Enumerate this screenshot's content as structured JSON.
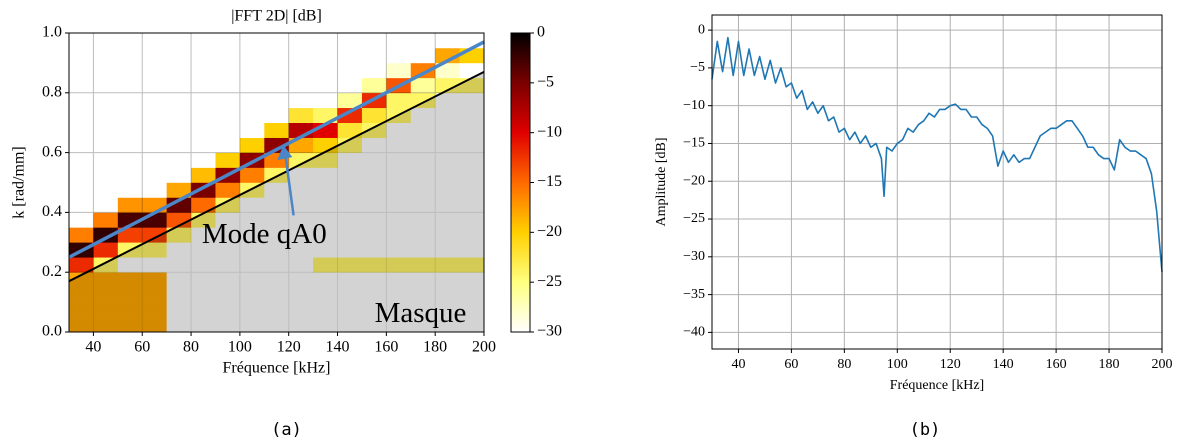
{
  "chart_data": [
    {
      "type": "heatmap",
      "title": "|FFT 2D| [dB]",
      "x_label": "Fréquence [kHz]",
      "y_label": "k [rad/mm]",
      "caption": "(a)",
      "xlim": [
        30,
        200
      ],
      "ylim": [
        0,
        1
      ],
      "xticks": [
        40,
        60,
        80,
        100,
        120,
        140,
        160,
        180,
        200
      ],
      "yticks": [
        {
          "value": 0,
          "label": "0.0"
        },
        0.2,
        0.4,
        0.6,
        0.8,
        {
          "value": 1,
          "label": "1.0"
        }
      ],
      "grid": true,
      "x_bins": [
        30,
        40,
        50,
        60,
        70,
        80,
        90,
        100,
        110,
        120,
        130,
        140,
        150,
        160,
        170,
        180,
        190,
        200
      ],
      "y_bins": [
        0,
        0.05,
        0.1,
        0.15,
        0.2,
        0.25,
        0.3,
        0.35,
        0.4,
        0.45,
        0.5,
        0.55,
        0.6,
        0.65,
        0.7,
        0.75,
        0.8,
        0.85,
        0.9,
        0.95,
        1
      ],
      "z": [
        [
          -18,
          -18,
          -18,
          -18,
          -30,
          -30,
          -30,
          -30,
          -30,
          -30,
          -30,
          -30,
          -30,
          -30,
          -30,
          -30,
          -30
        ],
        [
          -18,
          -18,
          -18,
          -18,
          -30,
          -30,
          -30,
          -30,
          -30,
          -30,
          -30,
          -30,
          -30,
          -30,
          -30,
          -30,
          -30
        ],
        [
          -18,
          -18,
          -18,
          -18,
          -30,
          -30,
          -30,
          -30,
          -30,
          -30,
          -30,
          -30,
          -30,
          -30,
          -30,
          -30,
          -30
        ],
        [
          -18,
          -18,
          -18,
          -18,
          -30,
          -30,
          -30,
          -30,
          -30,
          -30,
          -30,
          -30,
          -30,
          -30,
          -30,
          -30,
          -30
        ],
        [
          -12,
          -24,
          -30,
          -30,
          -30,
          -30,
          -30,
          -30,
          -30,
          -30,
          -24,
          -24,
          -24,
          -24,
          -24,
          -24,
          -24
        ],
        [
          -2,
          -12,
          -24,
          -24,
          -30,
          -30,
          -30,
          -30,
          -30,
          -30,
          -30,
          -30,
          -30,
          -30,
          -30,
          -30,
          -30
        ],
        [
          -16,
          -2,
          -13,
          -13,
          -24,
          -30,
          -30,
          -30,
          -30,
          -30,
          -30,
          -30,
          -30,
          -30,
          -30,
          -30,
          -30
        ],
        [
          -30,
          -16,
          -3,
          -3,
          -14,
          -24,
          -30,
          -30,
          -30,
          -30,
          -30,
          -30,
          -30,
          -30,
          -30,
          -30,
          -30
        ],
        [
          -30,
          -30,
          -17,
          -17,
          -4,
          -15,
          -24,
          -30,
          -30,
          -30,
          -30,
          -30,
          -30,
          -30,
          -30,
          -30,
          -30
        ],
        [
          -30,
          -30,
          -30,
          -30,
          -18,
          -5,
          -16,
          -24,
          -30,
          -30,
          -30,
          -30,
          -30,
          -30,
          -30,
          -30,
          -30
        ],
        [
          -30,
          -30,
          -30,
          -30,
          -30,
          -19,
          -6,
          -16,
          -24,
          -30,
          -30,
          -30,
          -30,
          -30,
          -30,
          -30,
          -30
        ],
        [
          -30,
          -30,
          -30,
          -30,
          -30,
          -30,
          -20,
          -6,
          -16,
          -24,
          -24,
          -30,
          -30,
          -30,
          -30,
          -30,
          -30
        ],
        [
          -30,
          -30,
          -30,
          -30,
          -30,
          -30,
          -30,
          -20,
          -6,
          -18,
          -20,
          -24,
          -30,
          -30,
          -30,
          -30,
          -30
        ],
        [
          -30,
          -30,
          -30,
          -30,
          -30,
          -30,
          -30,
          -30,
          -20,
          -8,
          -10,
          -22,
          -24,
          -30,
          -30,
          -30,
          -30
        ],
        [
          -30,
          -30,
          -30,
          -30,
          -30,
          -30,
          -30,
          -30,
          -30,
          -22,
          -24,
          -12,
          -22,
          -24,
          -30,
          -30,
          -30
        ],
        [
          -30,
          -30,
          -30,
          -30,
          -30,
          -30,
          -30,
          -30,
          -30,
          -30,
          -30,
          -26,
          -12,
          -24,
          -24,
          -30,
          -30
        ],
        [
          -30,
          -30,
          -30,
          -30,
          -30,
          -30,
          -30,
          -30,
          -30,
          -30,
          -30,
          -30,
          -26,
          -14,
          -26,
          -24,
          -24
        ],
        [
          -30,
          -30,
          -30,
          -30,
          -30,
          -30,
          -30,
          -30,
          -30,
          -30,
          -30,
          -30,
          -30,
          -28,
          -16,
          -28,
          -30
        ],
        [
          -30,
          -30,
          -30,
          -30,
          -30,
          -30,
          -30,
          -30,
          -30,
          -30,
          -30,
          -30,
          -30,
          -30,
          -30,
          -18,
          -20
        ],
        [
          -30,
          -30,
          -30,
          -30,
          -30,
          -30,
          -30,
          -30,
          -30,
          -30,
          -30,
          -30,
          -30,
          -30,
          -30,
          -30,
          -30
        ]
      ],
      "zlim": [
        -30,
        0
      ],
      "zticks": [
        0,
        {
          "value": -5,
          "label": "−5"
        },
        {
          "value": -10,
          "label": "−10"
        },
        {
          "value": -15,
          "label": "−15"
        },
        {
          "value": -20,
          "label": "−20"
        },
        {
          "value": -25,
          "label": "−25"
        },
        {
          "value": -30,
          "label": "−30"
        }
      ],
      "colormap": [
        "#ffffff",
        "#ffff80",
        "#ffd000",
        "#ff6a00",
        "#e00000",
        "#7a0000",
        "#000000"
      ],
      "mask": {
        "x": [
          30,
          30,
          200,
          200
        ],
        "y": [
          0,
          0.17,
          0.87,
          0
        ],
        "color": "#d3d3d3",
        "label": "Masque"
      },
      "lines": [
        {
          "x": [
            30,
            200
          ],
          "y": [
            0.17,
            0.87
          ],
          "color": "#000000"
        },
        {
          "x": [
            30,
            200
          ],
          "y": [
            0.25,
            0.97
          ],
          "color": "#4a86c8"
        }
      ],
      "annotation": "Mode qA0"
    },
    {
      "type": "line",
      "x_label": "Fréquence [kHz]",
      "y_label": "Amplitude [dB]",
      "caption": "(b)",
      "xlim": [
        30,
        200
      ],
      "ylim": [
        -42.2,
        2
      ],
      "xticks": [
        40,
        60,
        80,
        100,
        120,
        140,
        160,
        180,
        200
      ],
      "yticks": [
        0,
        {
          "value": -5,
          "label": "−5"
        },
        {
          "value": -10,
          "label": "−10"
        },
        {
          "value": -15,
          "label": "−15"
        },
        {
          "value": -20,
          "label": "−20"
        },
        {
          "value": -25,
          "label": "−25"
        },
        {
          "value": -30,
          "label": "−30"
        },
        {
          "value": -35,
          "label": "−35"
        },
        {
          "value": -40,
          "label": "−40"
        }
      ],
      "grid": true,
      "series": [
        {
          "color": "#1f77b4",
          "x": [
            30,
            32,
            34,
            36,
            38,
            40,
            42,
            44,
            46,
            48,
            50,
            52,
            54,
            56,
            58,
            60,
            62,
            64,
            66,
            68,
            70,
            72,
            74,
            76,
            78,
            80,
            82,
            84,
            86,
            88,
            90,
            92,
            94,
            95,
            96,
            98,
            100,
            102,
            104,
            106,
            108,
            110,
            112,
            114,
            116,
            118,
            120,
            122,
            124,
            126,
            128,
            130,
            132,
            134,
            136,
            138,
            140,
            142,
            144,
            146,
            148,
            150,
            152,
            154,
            156,
            158,
            160,
            162,
            164,
            166,
            168,
            170,
            172,
            174,
            176,
            178,
            180,
            182,
            184,
            186,
            188,
            190,
            192,
            194,
            196,
            198,
            200
          ],
          "values": [
            -6.5,
            -1.5,
            -5.5,
            -1,
            -6,
            -1.5,
            -6,
            -2.5,
            -6,
            -3.5,
            -6.5,
            -4,
            -7,
            -5,
            -7.5,
            -7,
            -9,
            -8,
            -10.5,
            -9.5,
            -11,
            -10,
            -12,
            -11.5,
            -13.5,
            -13,
            -14.5,
            -13.5,
            -15,
            -14,
            -15.5,
            -15,
            -17,
            -22,
            -15.5,
            -16,
            -15,
            -14.5,
            -13,
            -13.5,
            -12.5,
            -12,
            -11,
            -11.5,
            -10.5,
            -10.5,
            -10,
            -9.8,
            -10.5,
            -10.5,
            -11.5,
            -11.5,
            -12.5,
            -13,
            -14,
            -18,
            -16,
            -17.5,
            -16.5,
            -17.5,
            -17,
            -17,
            -15.5,
            -14,
            -13.5,
            -13,
            -13,
            -12.5,
            -12,
            -12,
            -13,
            -14,
            -15.5,
            -15.5,
            -16.5,
            -17,
            -17,
            -18.5,
            -14.5,
            -15.5,
            -16,
            -16,
            -16.5,
            -17,
            -19,
            -24,
            -32
          ]
        }
      ]
    }
  ]
}
